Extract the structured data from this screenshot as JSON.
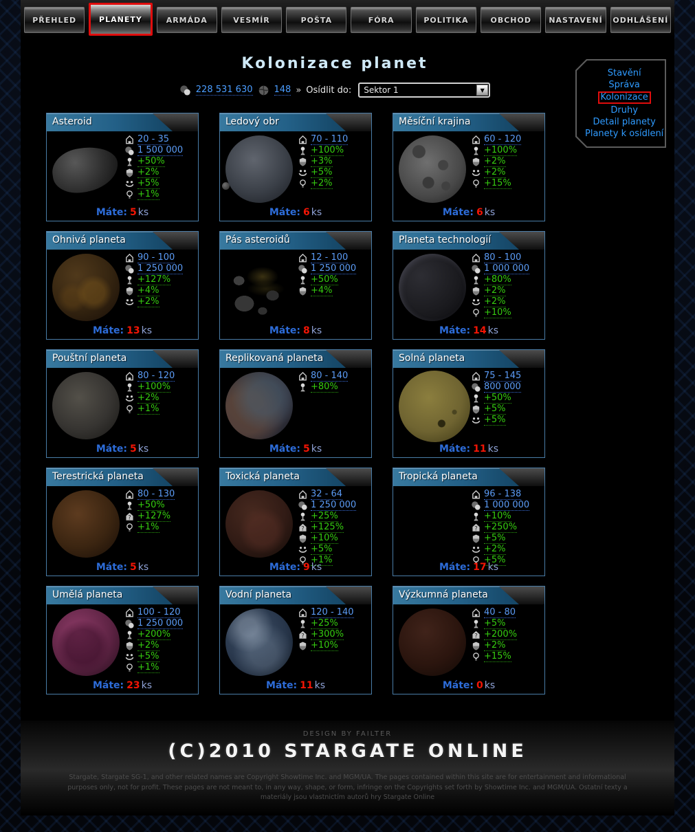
{
  "nav": {
    "tabs": [
      {
        "label": "PŘEHLED",
        "active": false
      },
      {
        "label": "PLANETY",
        "active": true
      },
      {
        "label": "ARMÁDA",
        "active": false
      },
      {
        "label": "VESMÍR",
        "active": false
      },
      {
        "label": "POŠTA",
        "active": false
      },
      {
        "label": "FÓRA",
        "active": false
      },
      {
        "label": "POLITIKA",
        "active": false
      },
      {
        "label": "OBCHOD",
        "active": false
      },
      {
        "label": "NASTAVENÍ",
        "active": false
      },
      {
        "label": "ODHLÁŠENÍ",
        "active": false
      }
    ]
  },
  "header": {
    "title": "Kolonizace planet"
  },
  "resources": {
    "money": "228 531 630",
    "planet_count": "148",
    "separator": "»",
    "colonize_label": "Osídlit do:",
    "sector_value": "Sektor 1"
  },
  "side_menu": {
    "items": [
      {
        "label": "Stavění",
        "highlighted": false
      },
      {
        "label": "Správa",
        "highlighted": false
      },
      {
        "label": "Kolonizace",
        "highlighted": true
      },
      {
        "label": "Druhy",
        "highlighted": false
      },
      {
        "label": "Detail planety",
        "highlighted": false
      },
      {
        "label": "Planety k osídlení",
        "highlighted": false
      }
    ]
  },
  "labels": {
    "owned": "Máte:",
    "unit": "ks"
  },
  "planets": [
    {
      "name": "Asteroid",
      "visual": "asteroid",
      "owned": "5",
      "stats": [
        {
          "icon": "house",
          "value": "20 - 35",
          "type": "blue"
        },
        {
          "icon": "naquadah",
          "value": "1 500 000",
          "type": "blue"
        },
        {
          "icon": "person",
          "value": "+50%",
          "type": "green"
        },
        {
          "icon": "shield",
          "value": "+2%",
          "type": "green"
        },
        {
          "icon": "smiley",
          "value": "+5%",
          "type": "green"
        },
        {
          "icon": "bulb",
          "value": "+1%",
          "type": "green"
        }
      ]
    },
    {
      "name": "Ledový obr",
      "visual": "ice",
      "owned": "6",
      "stats": [
        {
          "icon": "house",
          "value": "70 - 110",
          "type": "blue"
        },
        {
          "icon": "person",
          "value": "+100%",
          "type": "green"
        },
        {
          "icon": "shield",
          "value": "+3%",
          "type": "green"
        },
        {
          "icon": "smiley",
          "value": "+5%",
          "type": "green"
        },
        {
          "icon": "bulb",
          "value": "+2%",
          "type": "green"
        }
      ]
    },
    {
      "name": "Měsíční krajina",
      "visual": "moon",
      "owned": "6",
      "stats": [
        {
          "icon": "house",
          "value": "60 - 120",
          "type": "blue"
        },
        {
          "icon": "person",
          "value": "+100%",
          "type": "green"
        },
        {
          "icon": "shield",
          "value": "+2%",
          "type": "green"
        },
        {
          "icon": "smiley",
          "value": "+2%",
          "type": "green"
        },
        {
          "icon": "bulb",
          "value": "+15%",
          "type": "green"
        }
      ]
    },
    {
      "name": "Ohnivá planeta",
      "visual": "fire",
      "owned": "13",
      "stats": [
        {
          "icon": "house",
          "value": "90 - 100",
          "type": "blue"
        },
        {
          "icon": "naquadah",
          "value": "1 250 000",
          "type": "blue"
        },
        {
          "icon": "person",
          "value": "+127%",
          "type": "green"
        },
        {
          "icon": "shield",
          "value": "+4%",
          "type": "green"
        },
        {
          "icon": "smiley",
          "value": "+2%",
          "type": "green"
        }
      ]
    },
    {
      "name": "Pás asteroidů",
      "visual": "belt",
      "owned": "8",
      "stats": [
        {
          "icon": "house",
          "value": "12 - 100",
          "type": "blue"
        },
        {
          "icon": "naquadah",
          "value": "1 250 000",
          "type": "blue"
        },
        {
          "icon": "person",
          "value": "+50%",
          "type": "green"
        },
        {
          "icon": "shield",
          "value": "+4%",
          "type": "green"
        }
      ]
    },
    {
      "name": "Planeta technologií",
      "visual": "tech",
      "owned": "14",
      "stats": [
        {
          "icon": "house",
          "value": "80 - 100",
          "type": "blue"
        },
        {
          "icon": "naquadah",
          "value": "1 000 000",
          "type": "blue"
        },
        {
          "icon": "person",
          "value": "+80%",
          "type": "green"
        },
        {
          "icon": "shield",
          "value": "+2%",
          "type": "green"
        },
        {
          "icon": "smiley",
          "value": "+2%",
          "type": "green"
        },
        {
          "icon": "bulb",
          "value": "+10%",
          "type": "green"
        }
      ]
    },
    {
      "name": "Pouštní planeta",
      "visual": "desert",
      "owned": "5",
      "stats": [
        {
          "icon": "house",
          "value": "80 - 120",
          "type": "blue"
        },
        {
          "icon": "person",
          "value": "+100%",
          "type": "green"
        },
        {
          "icon": "smiley",
          "value": "+2%",
          "type": "green"
        },
        {
          "icon": "bulb",
          "value": "+1%",
          "type": "green"
        }
      ]
    },
    {
      "name": "Replikovaná planeta",
      "visual": "replicated",
      "owned": "5",
      "stats": [
        {
          "icon": "house",
          "value": "80 - 140",
          "type": "blue"
        },
        {
          "icon": "person",
          "value": "+80%",
          "type": "green"
        }
      ]
    },
    {
      "name": "Solná planeta",
      "visual": "salt",
      "owned": "11",
      "stats": [
        {
          "icon": "house",
          "value": "75 - 145",
          "type": "blue"
        },
        {
          "icon": "naquadah",
          "value": "800 000",
          "type": "blue"
        },
        {
          "icon": "person",
          "value": "+50%",
          "type": "green"
        },
        {
          "icon": "shield",
          "value": "+5%",
          "type": "green"
        },
        {
          "icon": "smiley",
          "value": "+5%",
          "type": "green"
        }
      ]
    },
    {
      "name": "Terestrická planeta",
      "visual": "terrestrial",
      "owned": "5",
      "stats": [
        {
          "icon": "house",
          "value": "80 - 130",
          "type": "blue"
        },
        {
          "icon": "person",
          "value": "+50%",
          "type": "green"
        },
        {
          "icon": "houseq",
          "value": "+127%",
          "type": "green"
        },
        {
          "icon": "bulb",
          "value": "+1%",
          "type": "green"
        }
      ]
    },
    {
      "name": "Toxická planeta",
      "visual": "toxic",
      "owned": "9",
      "stats": [
        {
          "icon": "house",
          "value": "32 - 64",
          "type": "blue"
        },
        {
          "icon": "naquadah",
          "value": "1 250 000",
          "type": "blue"
        },
        {
          "icon": "person",
          "value": "+25%",
          "type": "green"
        },
        {
          "icon": "houseq",
          "value": "+125%",
          "type": "green"
        },
        {
          "icon": "shield",
          "value": "+10%",
          "type": "green"
        },
        {
          "icon": "smiley",
          "value": "+5%",
          "type": "green"
        },
        {
          "icon": "bulb",
          "value": "+1%",
          "type": "green"
        }
      ]
    },
    {
      "name": "Tropická planeta",
      "visual": "tropical",
      "owned": "17",
      "stats": [
        {
          "icon": "house",
          "value": "96 - 138",
          "type": "blue"
        },
        {
          "icon": "naquadah",
          "value": "1 000 000",
          "type": "blue"
        },
        {
          "icon": "person",
          "value": "+10%",
          "type": "green"
        },
        {
          "icon": "houseq",
          "value": "+250%",
          "type": "green"
        },
        {
          "icon": "shield",
          "value": "+5%",
          "type": "green"
        },
        {
          "icon": "smiley",
          "value": "+2%",
          "type": "green"
        },
        {
          "icon": "bulb",
          "value": "+5%",
          "type": "green"
        }
      ]
    },
    {
      "name": "Umělá planeta",
      "visual": "artificial",
      "owned": "23",
      "stats": [
        {
          "icon": "house",
          "value": "100 - 120",
          "type": "blue"
        },
        {
          "icon": "naquadah",
          "value": "1 250 000",
          "type": "blue"
        },
        {
          "icon": "person",
          "value": "+200%",
          "type": "green"
        },
        {
          "icon": "shield",
          "value": "+2%",
          "type": "green"
        },
        {
          "icon": "smiley",
          "value": "+5%",
          "type": "green"
        },
        {
          "icon": "bulb",
          "value": "+1%",
          "type": "green"
        }
      ]
    },
    {
      "name": "Vodní planeta",
      "visual": "water",
      "owned": "11",
      "stats": [
        {
          "icon": "house",
          "value": "120 - 140",
          "type": "blue"
        },
        {
          "icon": "person",
          "value": "+25%",
          "type": "green"
        },
        {
          "icon": "houseq",
          "value": "+300%",
          "type": "green"
        },
        {
          "icon": "shield",
          "value": "+10%",
          "type": "green"
        }
      ]
    },
    {
      "name": "Výzkumná planeta",
      "visual": "research",
      "owned": "0",
      "stats": [
        {
          "icon": "house",
          "value": "40 - 80",
          "type": "blue"
        },
        {
          "icon": "person",
          "value": "+5%",
          "type": "green"
        },
        {
          "icon": "houseq",
          "value": "+200%",
          "type": "green"
        },
        {
          "icon": "shield",
          "value": "+2%",
          "type": "green"
        },
        {
          "icon": "bulb",
          "value": "+15%",
          "type": "green"
        }
      ]
    }
  ],
  "footer": {
    "design_credit": "DESIGN BY FAILTER",
    "logo": "(C)2010 STARGATE ONLINE",
    "disclaimer": "Stargate, Stargate SG-1, and other related names are Copyright Showtime Inc. and MGM/UA. The pages contained within this site are for entertainment and informational purposes only, not for profit. These pages are not meant to, in any way, shape, or form, infringe on the Copyrights set forth by Showtime Inc. and MGM/UA. Ostatní texty a materiály jsou vlastnictím autorů hry Stargate Online"
  },
  "colors": {
    "accent_blue": "#4b9dff",
    "stat_green": "#35cc0f",
    "owned_red": "#f21505",
    "highlight_red": "#e00d0d",
    "card_header_blue": "#2f729c"
  }
}
